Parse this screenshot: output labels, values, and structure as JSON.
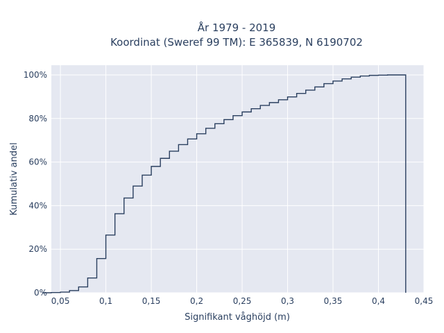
{
  "chart_data": {
    "type": "line",
    "title": "År 1979 - 2019",
    "subtitle": "Koordinat (Sweref 99 TM): E 365839, N 6190702",
    "xlabel": "Signifikant våghöjd (m)",
    "ylabel": "Kumulativ andel",
    "xlim": [
      0.04,
      0.45
    ],
    "ylim": [
      0,
      1.0
    ],
    "grid": true,
    "legend": "none",
    "line_shape": "step",
    "colors": {
      "plot_bg": "#e5e8f1",
      "line": "#2a3f5f",
      "text": "#2a3f5f",
      "grid": "#ffffff"
    },
    "x_ticks": [
      {
        "value": 0.05,
        "label": "0,05"
      },
      {
        "value": 0.1,
        "label": "0,1"
      },
      {
        "value": 0.15,
        "label": "0,15"
      },
      {
        "value": 0.2,
        "label": "0,2"
      },
      {
        "value": 0.25,
        "label": "0,25"
      },
      {
        "value": 0.3,
        "label": "0,3"
      },
      {
        "value": 0.35,
        "label": "0,35"
      },
      {
        "value": 0.4,
        "label": "0,4"
      },
      {
        "value": 0.45,
        "label": "0,45"
      }
    ],
    "y_ticks": [
      {
        "value": 0,
        "label": "0%"
      },
      {
        "value": 0.2,
        "label": "20%"
      },
      {
        "value": 0.4,
        "label": "40%"
      },
      {
        "value": 0.6,
        "label": "60%"
      },
      {
        "value": 0.8,
        "label": "80%"
      },
      {
        "value": 1.0,
        "label": "100%"
      }
    ],
    "series": [
      {
        "x": [
          0.03,
          0.04,
          0.05,
          0.06,
          0.07,
          0.08,
          0.09,
          0.1,
          0.11,
          0.12,
          0.13,
          0.14,
          0.15,
          0.16,
          0.17,
          0.18,
          0.19,
          0.2,
          0.21,
          0.22,
          0.23,
          0.24,
          0.25,
          0.26,
          0.27,
          0.28,
          0.29,
          0.3,
          0.31,
          0.32,
          0.33,
          0.34,
          0.35,
          0.36,
          0.37,
          0.38,
          0.39,
          0.4,
          0.41,
          0.42,
          0.43,
          0.43
        ],
        "y": [
          0.0,
          0.001,
          0.003,
          0.01,
          0.027,
          0.068,
          0.157,
          0.265,
          0.363,
          0.435,
          0.49,
          0.54,
          0.58,
          0.617,
          0.65,
          0.68,
          0.706,
          0.73,
          0.755,
          0.776,
          0.795,
          0.813,
          0.83,
          0.845,
          0.86,
          0.873,
          0.886,
          0.899,
          0.915,
          0.93,
          0.945,
          0.96,
          0.972,
          0.982,
          0.99,
          0.995,
          0.998,
          0.999,
          1.0,
          1.0,
          1.0,
          0.0
        ]
      }
    ]
  }
}
